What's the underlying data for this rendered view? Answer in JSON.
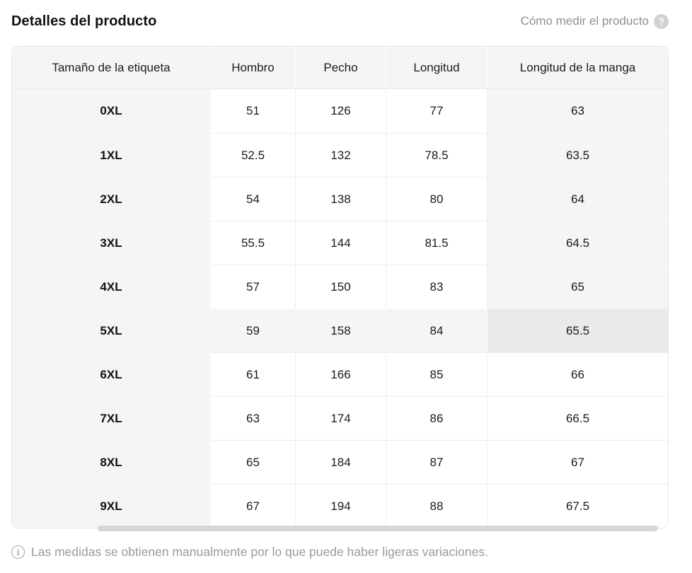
{
  "page": {
    "title": "Detalles del producto",
    "measure_link_label": "Cómo medir el producto",
    "footer_note": "Las medidas se obtienen manualmente por lo que puede haber ligeras variaciones."
  },
  "icons": {
    "question_icon": "?",
    "info_icon": "i"
  },
  "table": {
    "columns": [
      "Tamaño de la etiqueta",
      "Hombro",
      "Pecho",
      "Longitud",
      "Longitud de la manga"
    ],
    "rows": [
      {
        "size": "0XL",
        "values": [
          "51",
          "126",
          "77",
          "63"
        ]
      },
      {
        "size": "1XL",
        "values": [
          "52.5",
          "132",
          "78.5",
          "63.5"
        ]
      },
      {
        "size": "2XL",
        "values": [
          "54",
          "138",
          "80",
          "64"
        ]
      },
      {
        "size": "3XL",
        "values": [
          "55.5",
          "144",
          "81.5",
          "64.5"
        ]
      },
      {
        "size": "4XL",
        "values": [
          "57",
          "150",
          "83",
          "65"
        ]
      },
      {
        "size": "5XL",
        "values": [
          "59",
          "158",
          "84",
          "65.5"
        ]
      },
      {
        "size": "6XL",
        "values": [
          "61",
          "166",
          "85",
          "66"
        ]
      },
      {
        "size": "7XL",
        "values": [
          "63",
          "174",
          "86",
          "66.5"
        ]
      },
      {
        "size": "8XL",
        "values": [
          "65",
          "184",
          "87",
          "67"
        ]
      },
      {
        "size": "9XL",
        "values": [
          "67",
          "194",
          "88",
          "67.5"
        ]
      }
    ],
    "highlight": {
      "row_index": 5,
      "col_index": 4,
      "row_label": "5XL",
      "col_label": "Longitud de la manga"
    }
  },
  "colors": {
    "header_bg": "#f5f5f6",
    "highlight_cell_bg": "#eaeaeb",
    "table_border": "#e7e7e9",
    "muted_text": "#9b9b9e",
    "scrollbar_thumb": "#d6d6d8"
  }
}
